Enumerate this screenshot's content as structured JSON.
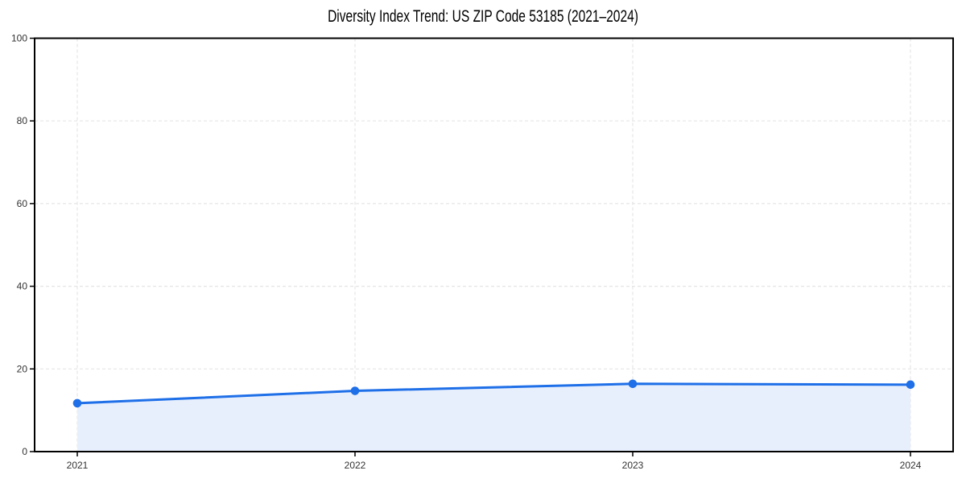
{
  "chart_data": {
    "type": "area",
    "title": "Diversity Index Trend: US ZIP Code 53185 (2021–2024)",
    "categories": [
      "2021",
      "2022",
      "2023",
      "2024"
    ],
    "values": [
      11.7,
      14.7,
      16.4,
      16.2
    ],
    "xlabel": "",
    "ylabel": "",
    "ylim": [
      0,
      100
    ],
    "yticks": [
      0,
      20,
      40,
      60,
      80,
      100
    ],
    "grid": "dashed-both-axes",
    "legend": "none",
    "marker": "circle",
    "colors": {
      "line": "#1e6fe8",
      "marker": "#1e6fe8",
      "area_fill": "#e8effc",
      "grid": "#e5e5e5",
      "spine": "#000000",
      "tick_text": "#333333",
      "title_text": "#000000",
      "background": "#ffffff"
    }
  }
}
